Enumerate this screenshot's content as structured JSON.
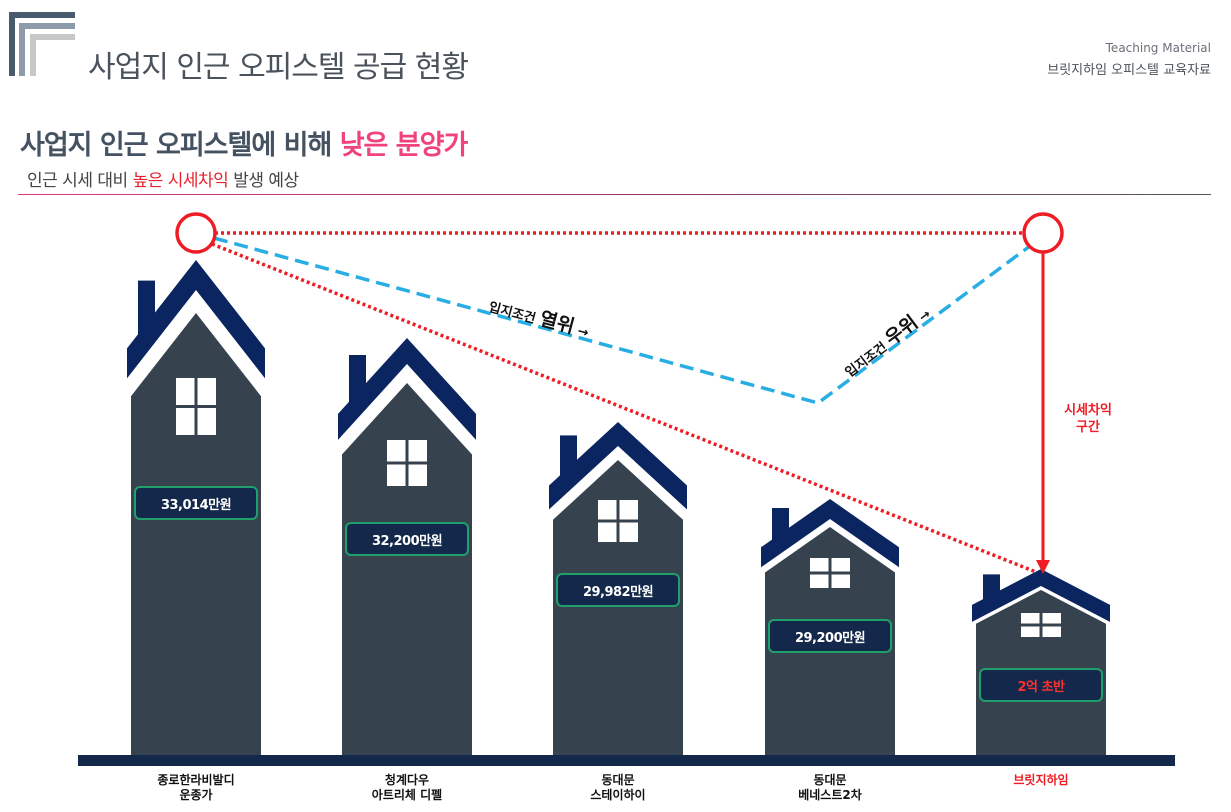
{
  "header": {
    "title": "사업지 인근 오피스텔 공급 현황",
    "tag_en": "Teaching Material",
    "tag_ko": "브릿지하임 오피스텔 교육자료"
  },
  "headline": {
    "prefix": "사업지 인근 오피스텔에 비해 ",
    "highlight": "낮은 분양가"
  },
  "subtitle": {
    "prefix": "인근 시세 대비 ",
    "highlight": "높은 시세차익",
    "suffix": " 발생 예상"
  },
  "annotations": {
    "inferior_small": "입지조건 ",
    "inferior_big": "열위",
    "superior_small": "입지조건 ",
    "superior_big": "우위",
    "arrow": " →",
    "gap_line1": "시세차익",
    "gap_line2": "구간"
  },
  "colors": {
    "navy": "#0b2561",
    "body": "#36434f",
    "red": "#ee1c24",
    "blue": "#29aee3",
    "pink": "#f0437c"
  },
  "houses": [
    {
      "name1": "종로한라비발디",
      "name2": "운종가",
      "price": "33,014만원"
    },
    {
      "name1": "청계다우",
      "name2": "아트리체 디펠",
      "price": "32,200만원"
    },
    {
      "name1": "동대문",
      "name2": "스테이하이",
      "price": "29,982만원"
    },
    {
      "name1": "동대문",
      "name2": "베네스트2차",
      "price": "29,200만원"
    },
    {
      "name1": "브릿지하임",
      "name2": "",
      "price": "2억 초반",
      "highlight": true
    }
  ]
}
